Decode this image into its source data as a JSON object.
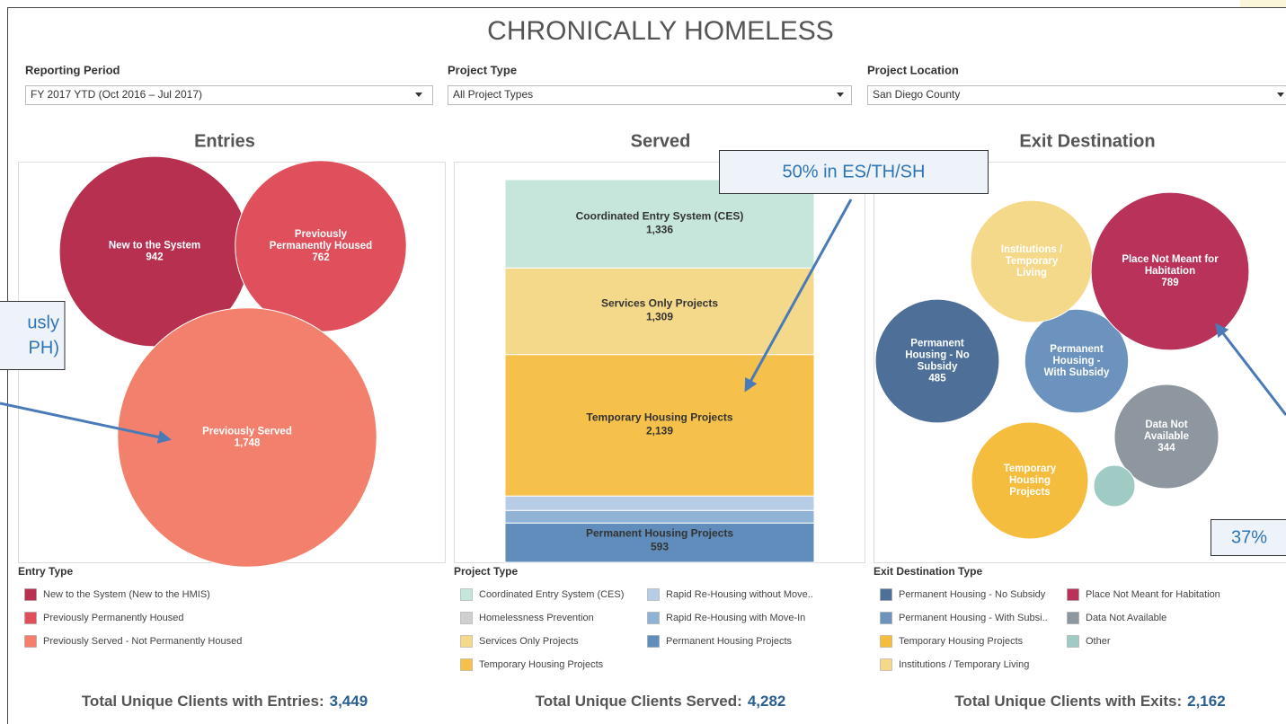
{
  "header": {
    "title": "CHRONICALLY HOMELESS"
  },
  "filters": [
    {
      "label": "Reporting Period",
      "value": "FY 2017 YTD (Oct 2016 – Jul 2017)"
    },
    {
      "label": "Project Type",
      "value": "All Project Types"
    },
    {
      "label": "Project Location",
      "value": "San Diego County"
    }
  ],
  "chart_data": [
    {
      "type": "bubble",
      "title": "Entries",
      "categories": [
        "New to the System",
        "Previously Permanently Housed",
        "Previously Served"
      ],
      "values": [
        942,
        762,
        1748
      ],
      "value_labels": [
        "942",
        "762",
        "1,748"
      ],
      "colors": [
        "#b8304f",
        "#df4f5c",
        "#f2806c"
      ],
      "legend_title": "Entry Type",
      "legend": [
        "New to the System (New to the HMIS)",
        "Previously Permanently Housed",
        "Previously Served - Not Permanently Housed"
      ]
    },
    {
      "type": "stacked_bar",
      "title": "Served",
      "legend_title": "Project Type",
      "series": [
        {
          "name": "Coordinated Entry System (CES)",
          "color": "#c6e6dc",
          "values": [
            1336
          ],
          "value_labels": [
            "1,336"
          ]
        },
        {
          "name": "Homelessness Prevention",
          "color": "#cfcfcf",
          "values": [
            0
          ]
        },
        {
          "name": "Services Only Projects",
          "color": "#f5d98b",
          "values": [
            1309
          ],
          "value_labels": [
            "1,309"
          ]
        },
        {
          "name": "Temporary Housing Projects",
          "color": "#f6c14b",
          "values": [
            2139
          ],
          "value_labels": [
            "2,139"
          ]
        },
        {
          "name": "Rapid Re-Housing without Move..",
          "color": "#b7cde6",
          "values": [
            218
          ]
        },
        {
          "name": "Rapid Re-Housing with Move-In",
          "color": "#8fb2d5",
          "values": [
            190
          ]
        },
        {
          "name": "Permanent Housing Projects",
          "color": "#608dbb",
          "values": [
            593
          ],
          "value_labels": [
            "593"
          ]
        }
      ]
    },
    {
      "type": "bubble",
      "title": "Exit Destination",
      "categories": [
        "Permanent Housing - No Subsidy",
        "Permanent Housing - With Subsidy",
        "Temporary Housing Projects",
        "Institutions / Temporary Living",
        "Place Not Meant for Habitation",
        "Data Not Available",
        null
      ],
      "values": [
        485,
        340,
        431,
        471,
        789,
        344,
        54
      ],
      "value_labels": [
        "485",
        null,
        null,
        null,
        "789",
        "344",
        null
      ],
      "colors": [
        "#4e7098",
        "#6b93be",
        "#f5bd3d",
        "#f5d98a",
        "#b8325a",
        "#8e979f",
        "#9fcbc4"
      ],
      "legend_title": "Exit Destination Type",
      "legend": [
        "Permanent Housing - No Subsidy",
        "Permanent Housing - With Subsi..",
        "Temporary Housing Projects",
        "Institutions / Temporary Living",
        "Place Not Meant for Habitation",
        "Data Not Available",
        "Other"
      ]
    }
  ],
  "callouts": [
    {
      "text": [
        "usly",
        "PH)"
      ]
    },
    {
      "text": "50% in ES/TH/SH"
    },
    {
      "text": "37%"
    }
  ],
  "totals": [
    {
      "label": "Total Unique Clients with Entries:",
      "value": "3,449"
    },
    {
      "label": "Total Unique Clients Served:",
      "value": "4,282"
    },
    {
      "label": "Total Unique Clients with Exits:",
      "value": "2,162"
    }
  ]
}
